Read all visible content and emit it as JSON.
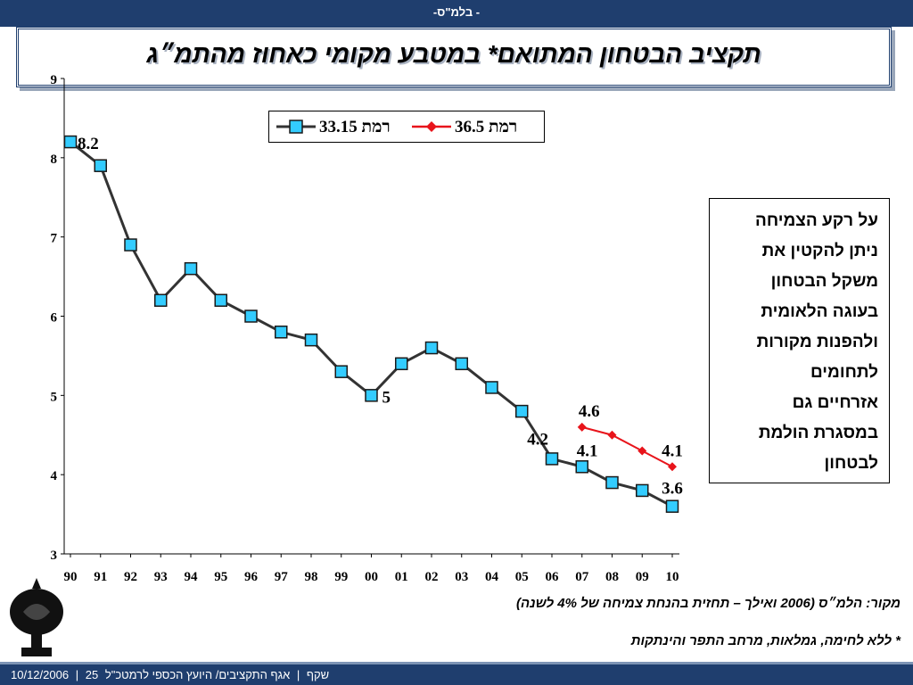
{
  "header": {
    "top_text": "- בלמ\"ס-"
  },
  "title": "תקציב הבטחון המתואם* במטבע מקומי כאחוז מהתמ״ג",
  "note": [
    "על רקע הצמיחה",
    "ניתן להקטין את",
    "משקל הבטחון",
    "בעוגה הלאומית",
    "ולהפנות מקורות",
    "לתחומים",
    "אזרחיים גם",
    "במסגרת הולמת",
    "לבטחון"
  ],
  "source": "מקור: הלמ״ס (2006 ואילך – תחזית בהנחת צמיחה של  4% לשנה)",
  "footnote": "* ללא לחימה, גמלאות, מרחב התפר והינתקות",
  "footer": {
    "date": "10/12/2006",
    "sep1": "|",
    "slide_num": "25",
    "slide_label": "שקף",
    "sep2": "|",
    "dept": "אגף התקציבים/ היועץ הכספי לרמטכ\"ל"
  },
  "colors": {
    "series1": "#33ccff",
    "series1_line": "#333333",
    "series2": "#e8141b",
    "header_bg": "#1f3e6e"
  },
  "chart_data": {
    "type": "line",
    "categories": [
      "90",
      "91",
      "92",
      "93",
      "94",
      "95",
      "96",
      "97",
      "98",
      "99",
      "00",
      "01",
      "02",
      "03",
      "04",
      "05",
      "06",
      "07",
      "08",
      "09",
      "10"
    ],
    "ylim": [
      3,
      9
    ],
    "yticks": [
      "3",
      "4",
      "5",
      "6",
      "7",
      "8",
      "9"
    ],
    "legend_position": "top",
    "grid": false,
    "series": [
      {
        "name": "רמת 33.15",
        "marker": "square",
        "values": [
          8.2,
          7.9,
          6.9,
          6.2,
          6.6,
          6.2,
          6.0,
          5.8,
          5.7,
          5.3,
          5.0,
          5.4,
          5.6,
          5.4,
          5.1,
          4.8,
          4.2,
          4.1,
          3.9,
          3.8,
          3.6
        ]
      },
      {
        "name": "רמת 36.5",
        "marker": "diamond",
        "values": [
          null,
          null,
          null,
          null,
          null,
          null,
          null,
          null,
          null,
          null,
          null,
          null,
          null,
          null,
          null,
          null,
          null,
          4.6,
          4.5,
          4.3,
          4.1
        ]
      }
    ],
    "data_labels": [
      {
        "series": 0,
        "index": 0,
        "text": "8.2"
      },
      {
        "series": 0,
        "index": 10,
        "text": "5"
      },
      {
        "series": 0,
        "index": 16,
        "text": "4.2"
      },
      {
        "series": 0,
        "index": 17,
        "text": "4.1"
      },
      {
        "series": 0,
        "index": 20,
        "text": "3.6"
      },
      {
        "series": 1,
        "index": 17,
        "text": "4.6"
      },
      {
        "series": 1,
        "index": 20,
        "text": "4.1"
      }
    ]
  }
}
